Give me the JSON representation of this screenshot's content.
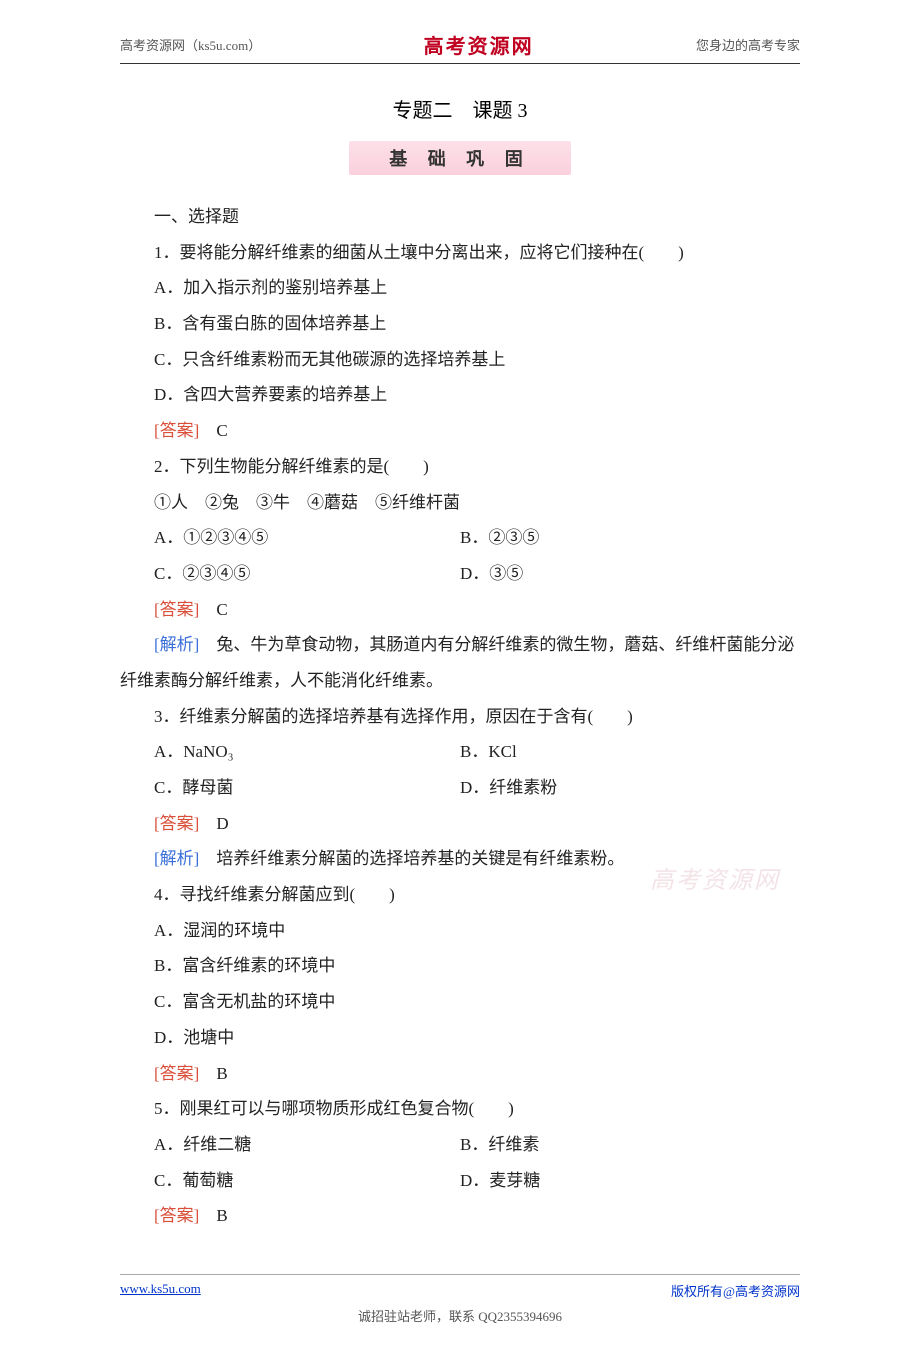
{
  "header": {
    "left": "高考资源网（ks5u.com）",
    "center": "高考资源网",
    "right": "您身边的高考专家"
  },
  "title": "专题二　课题 3",
  "subtitle": "基 础 巩 固",
  "section_heading": "一、选择题",
  "questions": [
    {
      "stem": "1．要将能分解纤维素的细菌从土壤中分离出来，应将它们接种在(　　)",
      "options_full": [
        "A．加入指示剂的鉴别培养基上",
        "B．含有蛋白胨的固体培养基上",
        "C．只含纤维素粉而无其他碳源的选择培养基上",
        "D．含四大营养要素的培养基上"
      ],
      "answer_label": "[答案]",
      "answer_value": "　C"
    },
    {
      "stem": "2．下列生物能分解纤维素的是(　　)",
      "sub_line": "①人　②兔　③牛　④蘑菇　⑤纤维杆菌",
      "options_two_col": [
        {
          "left": "A．①②③④⑤",
          "right": "B．②③⑤"
        },
        {
          "left": "C．②③④⑤",
          "right": "D．③⑤"
        }
      ],
      "answer_label": "[答案]",
      "answer_value": "　C",
      "analysis_label": "[解析]",
      "analysis_text": "　兔、牛为草食动物，其肠道内有分解纤维素的微生物，蘑菇、纤维杆菌能分泌纤维素酶分解纤维素，人不能消化纤维素。"
    },
    {
      "stem": "3．纤维素分解菌的选择培养基有选择作用，原因在于含有(　　)",
      "options_two_col": [
        {
          "left": "A．NaNO₃",
          "right": "B．KCl"
        },
        {
          "left": "C．酵母菌",
          "right": "D．纤维素粉"
        }
      ],
      "answer_label": "[答案]",
      "answer_value": "　D",
      "analysis_label": "[解析]",
      "analysis_text": "　培养纤维素分解菌的选择培养基的关键是有纤维素粉。"
    },
    {
      "stem": "4．寻找纤维素分解菌应到(　　)",
      "options_full": [
        "A．湿润的环境中",
        "B．富含纤维素的环境中",
        "C．富含无机盐的环境中",
        "D．池塘中"
      ],
      "answer_label": "[答案]",
      "answer_value": "　B"
    },
    {
      "stem": "5．刚果红可以与哪项物质形成红色复合物(　　)",
      "options_two_col": [
        {
          "left": "A．纤维二糖",
          "right": "B．纤维素"
        },
        {
          "left": "C．葡萄糖",
          "right": "D．麦芽糖"
        }
      ],
      "answer_label": "[答案]",
      "answer_value": "　B"
    }
  ],
  "watermark": "高考资源网",
  "footer": {
    "left": "www.ks5u.com",
    "right": "版权所有@高考资源网",
    "bottom": "诚招驻站老师，联系 QQ2355394696"
  }
}
